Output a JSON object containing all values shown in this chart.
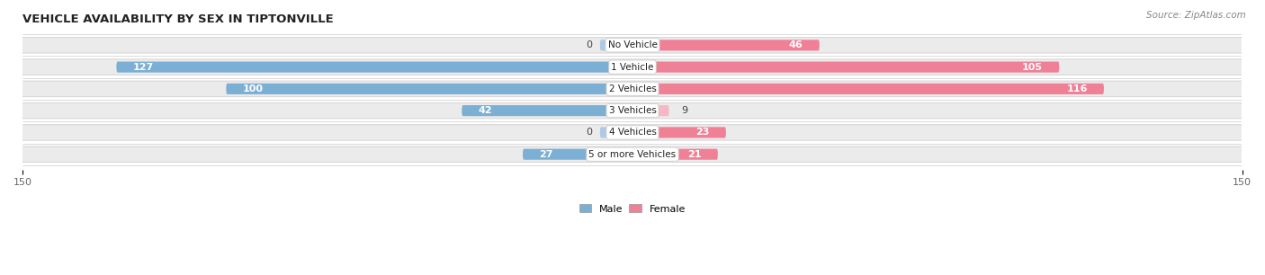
{
  "title": "VEHICLE AVAILABILITY BY SEX IN TIPTONVILLE",
  "source": "Source: ZipAtlas.com",
  "categories": [
    "No Vehicle",
    "1 Vehicle",
    "2 Vehicles",
    "3 Vehicles",
    "4 Vehicles",
    "5 or more Vehicles"
  ],
  "male_values": [
    0,
    127,
    100,
    42,
    0,
    27
  ],
  "female_values": [
    46,
    105,
    116,
    9,
    23,
    21
  ],
  "male_color": "#7bafd4",
  "female_color": "#f08096",
  "male_color_light": "#aec9e4",
  "female_color_light": "#f5b8c4",
  "row_bg_color": "#f0f0f0",
  "row_bg_color2": "#f8f8f8",
  "axis_limit": 150,
  "legend_male": "Male",
  "legend_female": "Female",
  "title_fontsize": 9.5,
  "source_fontsize": 7.5,
  "label_fontsize": 8,
  "category_fontsize": 7.5
}
